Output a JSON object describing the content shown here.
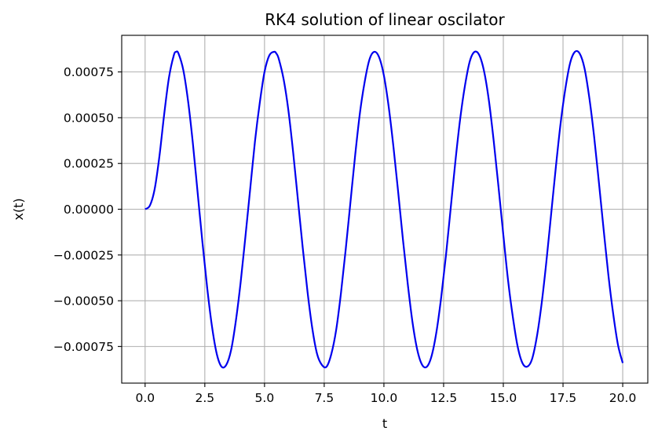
{
  "chart_data": {
    "type": "line",
    "title": "RK4 solution of linear oscilator",
    "xlabel": "t",
    "ylabel": "x(t)",
    "xlim": [
      -0.98,
      21.05
    ],
    "ylim": [
      -0.00095,
      0.00095
    ],
    "grid": true,
    "x_ticks": [
      0.0,
      2.5,
      5.0,
      7.5,
      10.0,
      12.5,
      15.0,
      17.5,
      20.0
    ],
    "x_tick_labels": [
      "0.0",
      "2.5",
      "5.0",
      "7.5",
      "10.0",
      "12.5",
      "15.0",
      "17.5",
      "20.0"
    ],
    "y_ticks": [
      0.00075,
      0.0005,
      0.00025,
      0.0,
      -0.00025,
      -0.0005,
      -0.00075
    ],
    "y_tick_labels": [
      "0.00075",
      "0.00050",
      "0.00025",
      "0.00000",
      "−0.00025",
      "−0.00050",
      "−0.00075"
    ],
    "series": [
      {
        "color": "#0000ee",
        "x": [
          0.0,
          0.2,
          0.4,
          0.6,
          0.8,
          1.0,
          1.2,
          1.3,
          1.4,
          1.6,
          1.8,
          2.0,
          2.2,
          2.4,
          2.6,
          2.8,
          3.0,
          3.2,
          3.4,
          3.6,
          3.8,
          4.0,
          4.2,
          4.4,
          4.6,
          4.8,
          5.0,
          5.2,
          5.4,
          5.5,
          5.6,
          5.8,
          6.0,
          6.2,
          6.4,
          6.6,
          6.8,
          7.0,
          7.2,
          7.4,
          7.6,
          7.8,
          8.0,
          8.2,
          8.4,
          8.6,
          8.8,
          9.0,
          9.2,
          9.4,
          9.6,
          9.8,
          10.0,
          10.2,
          10.4,
          10.6,
          10.8,
          11.0,
          11.2,
          11.4,
          11.6,
          11.8,
          12.0,
          12.2,
          12.4,
          12.6,
          12.8,
          13.0,
          13.2,
          13.4,
          13.6,
          13.8,
          14.0,
          14.2,
          14.4,
          14.6,
          14.8,
          15.0,
          15.2,
          15.4,
          15.6,
          15.8,
          16.0,
          16.2,
          16.4,
          16.6,
          16.8,
          17.0,
          17.2,
          17.4,
          17.6,
          17.8,
          18.0,
          18.2,
          18.4,
          18.6,
          18.8,
          19.0,
          19.2,
          19.4,
          19.6,
          19.8,
          20.0
        ],
        "y": [
          0.0,
          2e-05,
          0.00011,
          0.00029,
          0.00052,
          0.00072,
          0.00084,
          0.00086,
          0.00085,
          0.00076,
          0.00059,
          0.00036,
          9e-05,
          -0.00018,
          -0.00043,
          -0.00064,
          -0.00079,
          -0.00086,
          -0.00085,
          -0.00077,
          -0.00061,
          -0.0004,
          -0.00015,
          0.00011,
          0.00037,
          0.00058,
          0.00075,
          0.00084,
          0.00086,
          0.00085,
          0.00082,
          0.00071,
          0.00054,
          0.00031,
          5e-05,
          -0.00021,
          -0.00045,
          -0.00065,
          -0.00079,
          -0.00085,
          -0.00086,
          -0.00079,
          -0.00066,
          -0.00046,
          -0.00022,
          4e-05,
          0.0003,
          0.00053,
          0.0007,
          0.00082,
          0.00086,
          0.00083,
          0.00073,
          0.00056,
          0.00034,
          9e-05,
          -0.00017,
          -0.00041,
          -0.00062,
          -0.00077,
          -0.00085,
          -0.00086,
          -0.0008,
          -0.00067,
          -0.00048,
          -0.00025,
          1e-05,
          0.00027,
          0.0005,
          0.00068,
          0.00081,
          0.00086,
          0.00084,
          0.00075,
          0.00059,
          0.00037,
          0.00012,
          -0.00014,
          -0.00039,
          -0.00059,
          -0.00075,
          -0.00084,
          -0.00086,
          -0.00082,
          -0.0007,
          -0.00052,
          -0.00029,
          -3e-05,
          0.00023,
          0.00047,
          0.00066,
          0.0008,
          0.00086,
          0.00085,
          0.00077,
          0.00061,
          0.0004,
          0.00015,
          -0.00011,
          -0.00036,
          -0.00057,
          -0.00074,
          -0.00084
        ]
      }
    ]
  }
}
